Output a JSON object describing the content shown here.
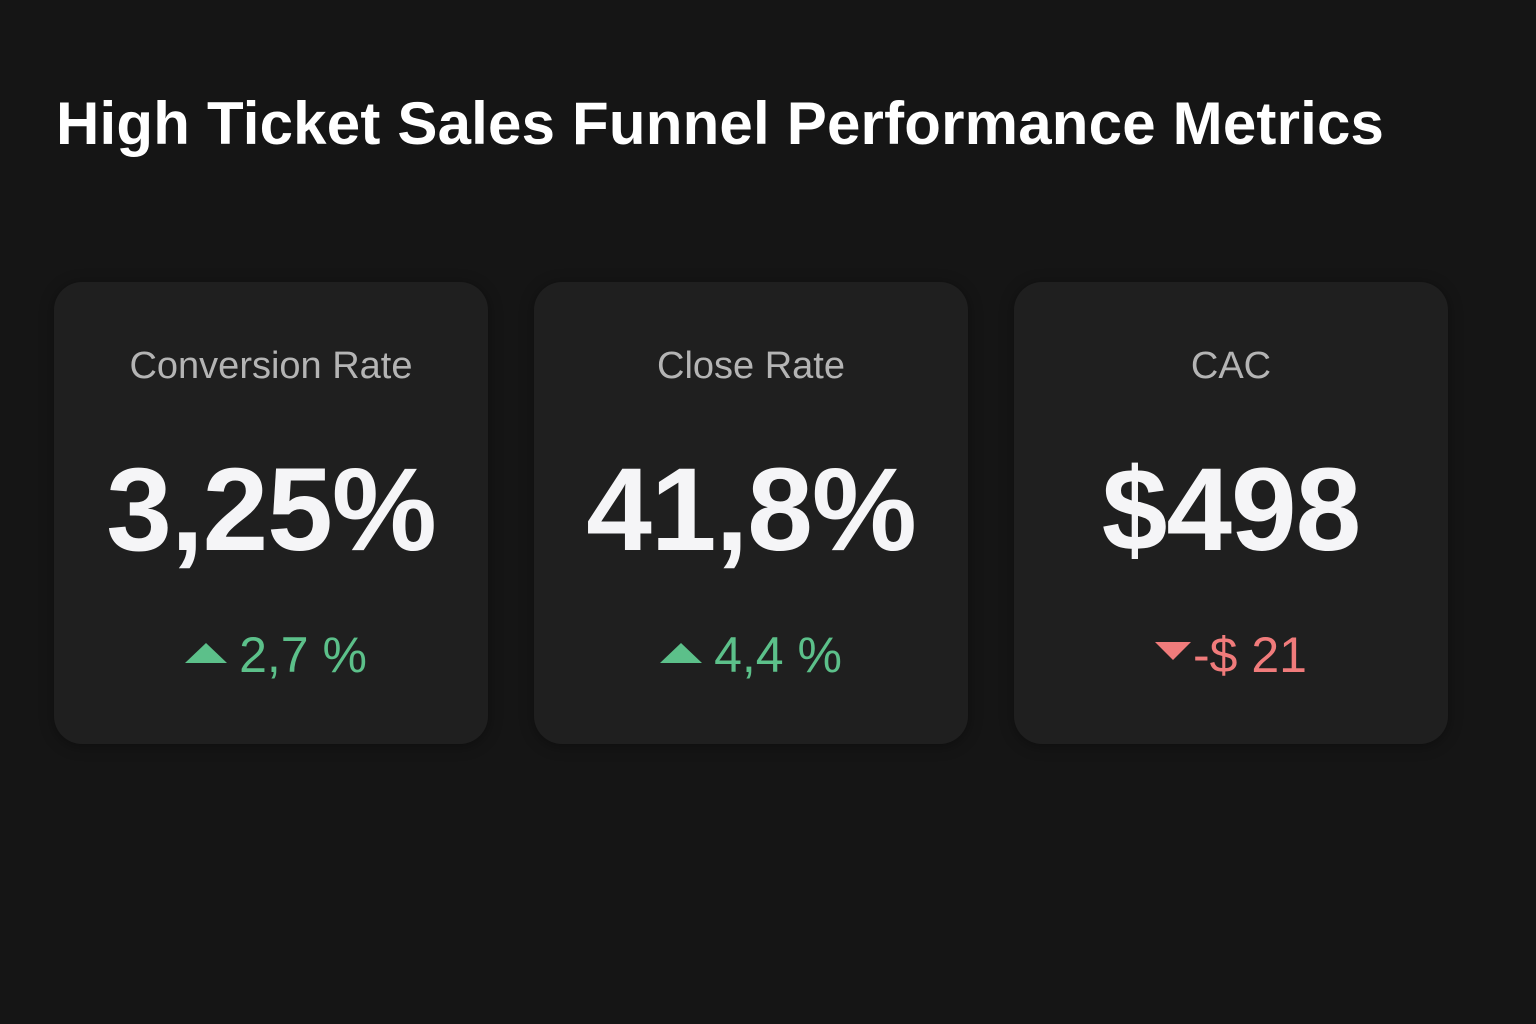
{
  "page": {
    "title": "High Ticket Sales Funnel Performance Metrics"
  },
  "colors": {
    "background": "#151515",
    "card_background": "#1f1f1f",
    "positive": "#5cc08a",
    "negative": "#f07b7b"
  },
  "cards": [
    {
      "label": "Conversion Rate",
      "value": "3,25%",
      "delta": "2,7 %",
      "trend": "up",
      "trend_icon": "triangle-up-icon"
    },
    {
      "label": "Close Rate",
      "value": "41,8%",
      "delta": "4,4 %",
      "trend": "up",
      "trend_icon": "triangle-up-icon"
    },
    {
      "label": "CAC",
      "value": "$498",
      "delta": "-$ 21",
      "trend": "down",
      "trend_icon": "triangle-down-icon"
    }
  ]
}
